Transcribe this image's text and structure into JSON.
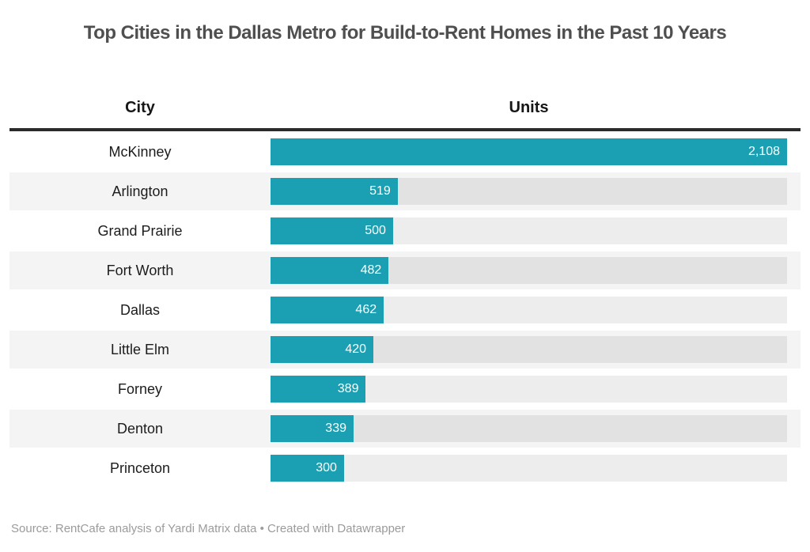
{
  "title": "Top Cities in the Dallas Metro for Build-to-Rent Homes in the Past 10 Years",
  "columns": {
    "city": "City",
    "units": "Units"
  },
  "footer": {
    "source": "Source: RentCafe analysis of Yardi Matrix data • Created with Datawrapper"
  },
  "colors": {
    "bar": "#1aa0b2",
    "track": "#e9e9e9",
    "row_alt": "#f4f4f5",
    "title": "#4f4f4f",
    "header_text": "#161616",
    "value_text": "#ffffff",
    "footer_text": "#9b9b9b",
    "rule": "#2b2b2b"
  },
  "chart_data": {
    "type": "bar",
    "orientation": "horizontal",
    "title": "Top Cities in the Dallas Metro for Build-to-Rent Homes in the Past 10 Years",
    "xlabel": "Units",
    "ylabel": "City",
    "xlim": [
      0,
      2108
    ],
    "grid": false,
    "legend": false,
    "categories": [
      "McKinney",
      "Arlington",
      "Grand Prairie",
      "Fort Worth",
      "Dallas",
      "Little Elm",
      "Forney",
      "Denton",
      "Princeton"
    ],
    "values": [
      2108,
      519,
      500,
      482,
      462,
      420,
      389,
      339,
      300
    ],
    "value_labels": [
      "2,108",
      "519",
      "500",
      "482",
      "462",
      "420",
      "389",
      "339",
      "300"
    ],
    "rows": [
      {
        "city": "McKinney",
        "value": 2108,
        "label": "2,108"
      },
      {
        "city": "Arlington",
        "value": 519,
        "label": "519"
      },
      {
        "city": "Grand Prairie",
        "value": 500,
        "label": "500"
      },
      {
        "city": "Fort Worth",
        "value": 482,
        "label": "482"
      },
      {
        "city": "Dallas",
        "value": 462,
        "label": "462"
      },
      {
        "city": "Little Elm",
        "value": 420,
        "label": "420"
      },
      {
        "city": "Forney",
        "value": 389,
        "label": "389"
      },
      {
        "city": "Denton",
        "value": 339,
        "label": "339"
      },
      {
        "city": "Princeton",
        "value": 300,
        "label": "300"
      }
    ]
  }
}
